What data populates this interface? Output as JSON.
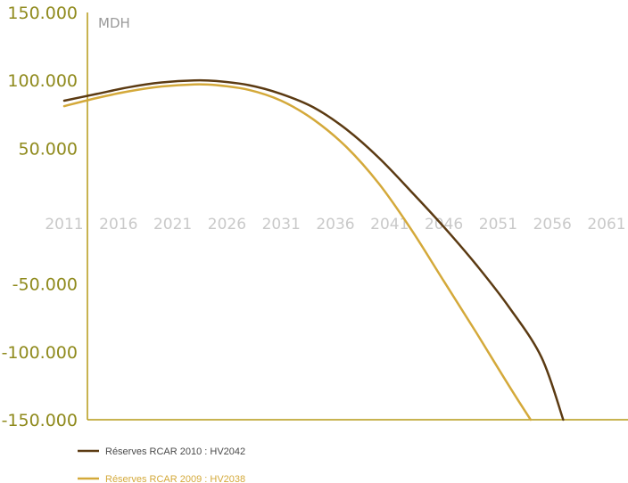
{
  "chart_data": {
    "type": "line",
    "unit_label": "MDH",
    "ylim": [
      -150000,
      150000
    ],
    "xlim": [
      2011,
      2061
    ],
    "y_tick_labels": [
      "150.000",
      "100.000",
      "50.000",
      "-50.000",
      "-100.000",
      "-150.000"
    ],
    "y_tick_values": [
      150000,
      100000,
      50000,
      -50000,
      -100000,
      -150000
    ],
    "x_tick_labels": [
      "2011",
      "2016",
      "2021",
      "2026",
      "2031",
      "2036",
      "2041",
      "2046",
      "2051",
      "2056",
      "2061"
    ],
    "x_tick_values": [
      2011,
      2016,
      2021,
      2026,
      2031,
      2036,
      2041,
      2046,
      2051,
      2056,
      2061
    ],
    "grid": false,
    "legend_position": "bottom-left",
    "series": [
      {
        "name": "Réserves RCAR 2010 : HV2042",
        "color": "#5b3a12",
        "x": [
          2011,
          2014,
          2017,
          2020,
          2023,
          2025,
          2028,
          2031,
          2034,
          2037,
          2040,
          2043,
          2046,
          2049,
          2052,
          2055,
          2057
        ],
        "y": [
          85000,
          90000,
          95000,
          98500,
          100000,
          99500,
          96500,
          90000,
          80000,
          64000,
          43000,
          18000,
          -8000,
          -36000,
          -67000,
          -104000,
          -150000
        ]
      },
      {
        "name": "Réserves RCAR 2009 : HV2038",
        "color": "#d4a93a",
        "x": [
          2011,
          2014,
          2017,
          2020,
          2023,
          2025,
          2028,
          2031,
          2034,
          2037,
          2040,
          2043,
          2046,
          2049,
          2052,
          2054
        ],
        "y": [
          81000,
          87000,
          92000,
          95500,
          97000,
          96500,
          93000,
          85000,
          71000,
          51000,
          24000,
          -10000,
          -48000,
          -86000,
          -125000,
          -150000
        ]
      }
    ]
  }
}
